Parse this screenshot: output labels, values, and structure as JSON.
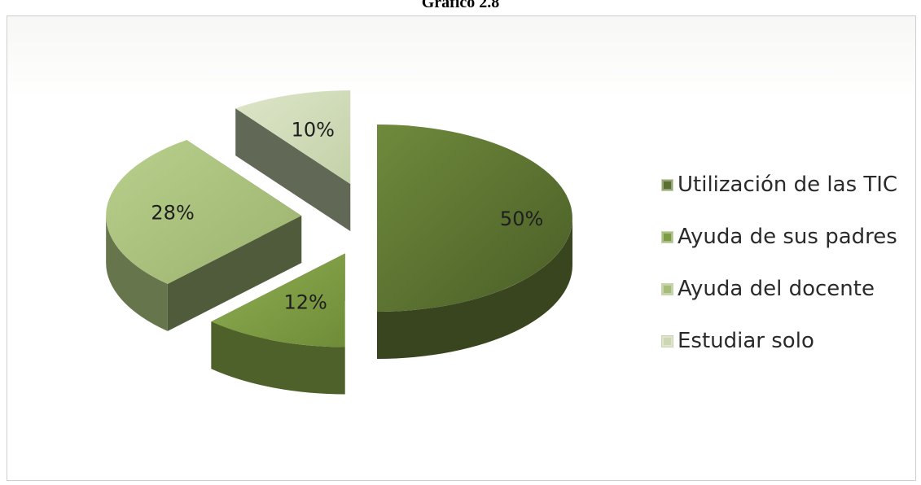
{
  "chart_data": {
    "type": "pie",
    "title": "Gráfico 2.8",
    "style": "3d-exploded",
    "legend_position": "right",
    "slices": [
      {
        "label": "Utilización de las TIC",
        "value": 50,
        "value_label": "50%",
        "color": "#5a7030"
      },
      {
        "label": "Ayuda de sus padres",
        "value": 12,
        "value_label": "12%",
        "color": "#7e9c43"
      },
      {
        "label": "Ayuda del docente",
        "value": 28,
        "value_label": "28%",
        "color": "#a6bd7a"
      },
      {
        "label": "Estudiar solo",
        "value": 10,
        "value_label": "10%",
        "color": "#ccd8b4"
      }
    ]
  }
}
